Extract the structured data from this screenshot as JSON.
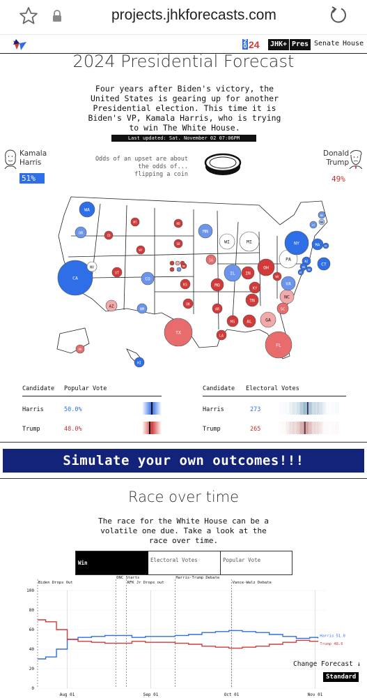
{
  "browser": {
    "url": "projects.jhkforecasts.com"
  },
  "nav": {
    "year_badge": "24",
    "jhk": "JHK+",
    "pres": "Pres",
    "senate": "Senate",
    "house": "House"
  },
  "header": {
    "title": "2024 Presidential Forecast",
    "intro": "Four years after Biden's victory, the United States is gearing up for another Presidential election. This time it is Biden's VP, Kamala Harris, who is trying to win The White House.",
    "updated": "Last updated: Sat. November 02 07:06PM"
  },
  "candidates": {
    "harris": {
      "first": "Kamala",
      "last": "Harris",
      "odds": "51%"
    },
    "trump": {
      "first": "Donald",
      "last": "Trump",
      "odds": "49%"
    },
    "upset_text": "Odds of an upset are about the odds of...",
    "upset_comparison": "flipping a coin"
  },
  "colors": {
    "dem": "#2e6ee6",
    "rep": "#d23a3a",
    "dem_light": "#a8c2f2",
    "rep_light": "#f2a9a9",
    "navy": "#13237a"
  },
  "map_states": [
    {
      "code": "WA",
      "lean": "d3"
    },
    {
      "code": "OR",
      "lean": "d2"
    },
    {
      "code": "CA",
      "lean": "d3"
    },
    {
      "code": "NV",
      "lean": "n"
    },
    {
      "code": "ID",
      "lean": "r3"
    },
    {
      "code": "MT",
      "lean": "r3"
    },
    {
      "code": "WY",
      "lean": "r3"
    },
    {
      "code": "UT",
      "lean": "r3"
    },
    {
      "code": "AZ",
      "lean": "r1"
    },
    {
      "code": "CO",
      "lean": "d2"
    },
    {
      "code": "NM",
      "lean": "d2"
    },
    {
      "code": "ND",
      "lean": "r3"
    },
    {
      "code": "SD",
      "lean": "r3"
    },
    {
      "code": "NE",
      "lean": "r3"
    },
    {
      "code": "KS",
      "lean": "r3"
    },
    {
      "code": "OK",
      "lean": "r3"
    },
    {
      "code": "TX",
      "lean": "r2"
    },
    {
      "code": "MN",
      "lean": "d2"
    },
    {
      "code": "IA",
      "lean": "r2"
    },
    {
      "code": "MO",
      "lean": "r3"
    },
    {
      "code": "AR",
      "lean": "r3"
    },
    {
      "code": "LA",
      "lean": "r3"
    },
    {
      "code": "WI",
      "lean": "n"
    },
    {
      "code": "IL",
      "lean": "d2"
    },
    {
      "code": "MI",
      "lean": "n"
    },
    {
      "code": "IN",
      "lean": "r3"
    },
    {
      "code": "OH",
      "lean": "r3"
    },
    {
      "code": "KY",
      "lean": "r3"
    },
    {
      "code": "TN",
      "lean": "r3"
    },
    {
      "code": "MS",
      "lean": "r3"
    },
    {
      "code": "AL",
      "lean": "r3"
    },
    {
      "code": "GA",
      "lean": "r1"
    },
    {
      "code": "FL",
      "lean": "r2"
    },
    {
      "code": "SC",
      "lean": "r2"
    },
    {
      "code": "NC",
      "lean": "r1"
    },
    {
      "code": "VA",
      "lean": "d2"
    },
    {
      "code": "WV",
      "lean": "r3"
    },
    {
      "code": "PA",
      "lean": "n"
    },
    {
      "code": "NY",
      "lean": "d3"
    },
    {
      "code": "ME",
      "lean": "d2"
    },
    {
      "code": "VT",
      "lean": "d2"
    },
    {
      "code": "NH",
      "lean": "d1"
    },
    {
      "code": "MA",
      "lean": "d3"
    },
    {
      "code": "RI",
      "lean": "d3"
    },
    {
      "code": "CT",
      "lean": "d3"
    },
    {
      "code": "NJ",
      "lean": "d3"
    },
    {
      "code": "DE",
      "lean": "d3"
    },
    {
      "code": "MD",
      "lean": "d3"
    },
    {
      "code": "DC",
      "lean": "d3"
    },
    {
      "code": "AK",
      "lean": "r2"
    },
    {
      "code": "HI",
      "lean": "d3"
    },
    {
      "code": "1",
      "lean": "r3"
    },
    {
      "code": "2",
      "lean": "r1"
    },
    {
      "code": "3",
      "lean": "r3"
    },
    {
      "code": "1",
      "lean": "d2"
    },
    {
      "code": "2",
      "lean": "r3"
    }
  ],
  "popular_table": {
    "h_candidate": "Candidate",
    "h_value": "Popular Vote",
    "rows": [
      {
        "name": "Harris",
        "value": "50.0%"
      },
      {
        "name": "Trump",
        "value": "48.0%"
      }
    ]
  },
  "electoral_table": {
    "h_candidate": "Candidate",
    "h_value": "Electoral Votes",
    "rows": [
      {
        "name": "Harris",
        "value": "273"
      },
      {
        "name": "Trump",
        "value": "265"
      }
    ]
  },
  "simulate": "Simulate your own outcomes!!!",
  "race": {
    "title": "Race over time",
    "intro": "The race for the White House can be a volatile one due. Take a look at the race over time.",
    "tabs": [
      "Win",
      "Electoral Votes",
      "Popular Vote"
    ],
    "change_forecast": "Change Forecast ↓",
    "mode": "Standard"
  },
  "chart_data": {
    "type": "line",
    "yticks": [
      "0",
      "20",
      "40",
      "60",
      "80",
      "100"
    ],
    "ylim": [
      0,
      100
    ],
    "xticks": [
      "Aug 01",
      "Sep 01",
      "Oct 01",
      "Nov 01"
    ],
    "xlim": [
      "2024-07-21",
      "2024-11-05"
    ],
    "events": [
      {
        "date": "2024-07-21",
        "label": "Biden Drops Out"
      },
      {
        "date": "2024-08-19",
        "label": "DNC Starts"
      },
      {
        "date": "2024-08-23",
        "label": "RFK Jr Drops out"
      },
      {
        "date": "2024-09-10",
        "label": "Harris-Trump Debate"
      },
      {
        "date": "2024-10-01",
        "label": "Vance-Walz Debate"
      }
    ],
    "series": [
      {
        "name": "Harris",
        "end_label": "Harris 51.0",
        "x": [
          "2024-07-21",
          "2024-07-24",
          "2024-07-28",
          "2024-08-01",
          "2024-08-05",
          "2024-08-10",
          "2024-08-15",
          "2024-08-20",
          "2024-08-25",
          "2024-08-30",
          "2024-09-05",
          "2024-09-10",
          "2024-09-15",
          "2024-09-20",
          "2024-09-25",
          "2024-09-30",
          "2024-10-05",
          "2024-10-10",
          "2024-10-15",
          "2024-10-20",
          "2024-10-25",
          "2024-10-30",
          "2024-11-02"
        ],
        "values": [
          30,
          32,
          40,
          50,
          52,
          53,
          54,
          54,
          52,
          53,
          53,
          54,
          55,
          57,
          58,
          59,
          58,
          57,
          55,
          53,
          51,
          52,
          51
        ]
      },
      {
        "name": "Trump",
        "end_label": "Trump 48.6",
        "x": [
          "2024-07-21",
          "2024-07-24",
          "2024-07-28",
          "2024-08-01",
          "2024-08-05",
          "2024-08-10",
          "2024-08-15",
          "2024-08-20",
          "2024-08-25",
          "2024-08-30",
          "2024-09-05",
          "2024-09-10",
          "2024-09-15",
          "2024-09-20",
          "2024-09-25",
          "2024-09-30",
          "2024-10-05",
          "2024-10-10",
          "2024-10-15",
          "2024-10-20",
          "2024-10-25",
          "2024-10-30",
          "2024-11-02"
        ],
        "values": [
          70,
          68,
          60,
          50,
          48,
          47,
          46,
          46,
          48,
          47,
          47,
          46,
          45,
          43,
          42,
          41,
          42,
          43,
          45,
          47,
          49,
          48,
          48.6
        ]
      }
    ]
  }
}
